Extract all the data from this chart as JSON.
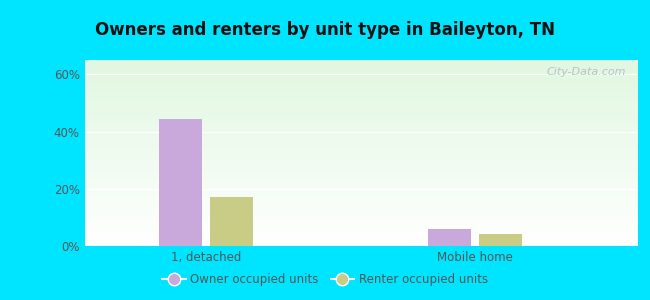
{
  "title": "Owners and renters by unit type in Baileyton, TN",
  "categories": [
    "1, detached",
    "Mobile home"
  ],
  "owner_values": [
    44.5,
    5.8
  ],
  "renter_values": [
    17.0,
    4.2
  ],
  "owner_color": "#c9a8dc",
  "renter_color": "#c8cc84",
  "ylim": [
    0,
    65
  ],
  "yticks": [
    0,
    20,
    40,
    60
  ],
  "yticklabels": [
    "0%",
    "20%",
    "40%",
    "60%"
  ],
  "legend_labels": [
    "Owner occupied units",
    "Renter occupied units"
  ],
  "outer_bg": "#00e5ff",
  "bar_width": 0.32,
  "group_positions": [
    1.0,
    3.0
  ],
  "watermark": "City-Data.com"
}
